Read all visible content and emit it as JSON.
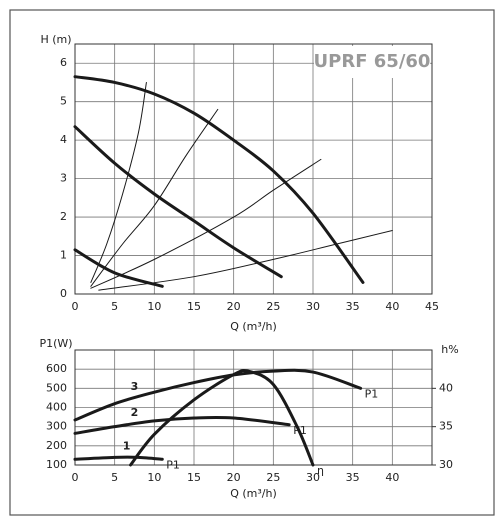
{
  "chart_data": [
    {
      "type": "line",
      "title": "UPRF 65/60",
      "y_label": "H (m)",
      "x_label": "Q (m³/h)",
      "xlim": [
        0,
        45
      ],
      "ylim": [
        0,
        6.5
      ],
      "xticks": [
        0,
        5,
        10,
        15,
        20,
        25,
        30,
        35,
        40,
        45
      ],
      "yticks": [
        0,
        1,
        2,
        3,
        4,
        5,
        6
      ],
      "grid": true,
      "series": [
        {
          "color": "#1a1a1a",
          "width": 3,
          "x": [
            0,
            5,
            10,
            15,
            20,
            25,
            30,
            36.3
          ],
          "values": [
            5.65,
            5.5,
            5.2,
            4.7,
            4.0,
            3.2,
            2.1,
            0.3
          ]
        },
        {
          "color": "#1a1a1a",
          "width": 3,
          "x": [
            0,
            5,
            10,
            15,
            20,
            26
          ],
          "values": [
            4.35,
            3.4,
            2.6,
            1.9,
            1.2,
            0.45
          ]
        },
        {
          "color": "#1a1a1a",
          "width": 3,
          "x": [
            0,
            5,
            11
          ],
          "values": [
            1.15,
            0.55,
            0.2
          ]
        },
        {
          "color": "#1a1a1a",
          "width": 1,
          "x": [
            2,
            4,
            6,
            8,
            9
          ],
          "values": [
            0.3,
            1.3,
            2.6,
            4.2,
            5.5
          ]
        },
        {
          "color": "#1a1a1a",
          "width": 1,
          "x": [
            2,
            6,
            10,
            14,
            18
          ],
          "values": [
            0.2,
            1.3,
            2.3,
            3.6,
            4.8
          ]
        },
        {
          "color": "#1a1a1a",
          "width": 1,
          "x": [
            2,
            10,
            20,
            25,
            31
          ],
          "values": [
            0.15,
            0.9,
            2.0,
            2.7,
            3.5
          ]
        },
        {
          "color": "#1a1a1a",
          "width": 1,
          "x": [
            3,
            15,
            25,
            33,
            40
          ],
          "values": [
            0.1,
            0.45,
            0.9,
            1.3,
            1.65
          ]
        }
      ]
    },
    {
      "type": "line",
      "y_label": "P1(W)",
      "y2_label": "h%",
      "x_label": "Q (m³/h)",
      "xlim": [
        0,
        45
      ],
      "ylim": [
        100,
        700
      ],
      "y2lim": [
        30,
        45
      ],
      "xticks": [
        0,
        5,
        10,
        15,
        20,
        25,
        30,
        35,
        40
      ],
      "yticks": [
        100,
        200,
        300,
        400,
        500,
        600
      ],
      "y2ticks": [
        30,
        35,
        40
      ],
      "grid": true,
      "series": [
        {
          "name": "P1",
          "label": "3",
          "color": "#1a1a1a",
          "width": 3,
          "x": [
            0,
            5,
            10,
            15,
            20,
            25,
            30,
            36
          ],
          "values": [
            335,
            420,
            480,
            530,
            570,
            590,
            585,
            500
          ]
        },
        {
          "name": "P1",
          "label": "2",
          "color": "#1a1a1a",
          "width": 3,
          "x": [
            0,
            5,
            10,
            15,
            20,
            27
          ],
          "values": [
            265,
            300,
            330,
            345,
            345,
            310
          ]
        },
        {
          "name": "P1",
          "label": "1",
          "color": "#1a1a1a",
          "width": 3,
          "x": [
            0,
            5,
            8,
            11
          ],
          "values": [
            130,
            140,
            140,
            130
          ]
        },
        {
          "name": "η",
          "axis": "y2",
          "color": "#1a1a1a",
          "width": 3,
          "x": [
            7,
            10,
            15,
            20,
            22,
            25,
            28,
            30
          ],
          "values": [
            30,
            34,
            38.5,
            41.8,
            42.2,
            40.5,
            35,
            30
          ]
        }
      ]
    }
  ]
}
